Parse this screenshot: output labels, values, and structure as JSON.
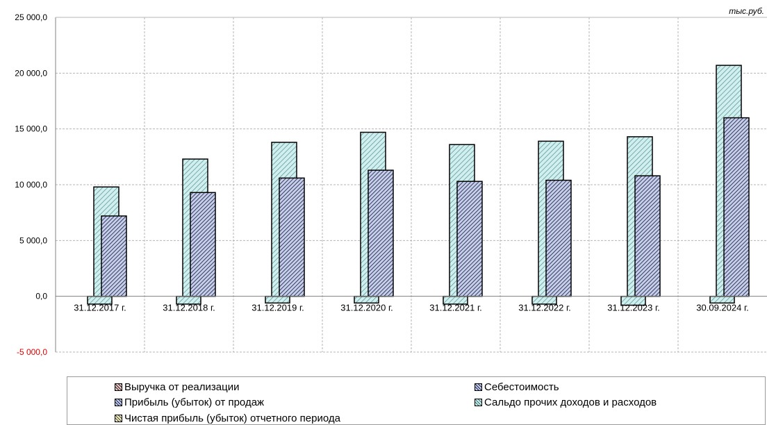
{
  "chart_data": {
    "type": "bar",
    "unit_label": "тыс.руб.",
    "categories": [
      "31.12.2017 г.",
      "31.12.2018 г.",
      "31.12.2019 г.",
      "31.12.2020 г.",
      "31.12.2021 г.",
      "31.12.2022 г.",
      "31.12.2023 г.",
      "30.09.2024 г."
    ],
    "ylim": [
      -5000,
      25000
    ],
    "yticks": [
      {
        "value": 25000,
        "label": "25 000,0"
      },
      {
        "value": 20000,
        "label": "20 000,0"
      },
      {
        "value": 15000,
        "label": "15 000,0"
      },
      {
        "value": 10000,
        "label": "10 000,0"
      },
      {
        "value": 5000,
        "label": "5 000,0"
      },
      {
        "value": 0,
        "label": "0,0"
      },
      {
        "value": -5000,
        "label": "-5 000,0"
      }
    ],
    "grid": true,
    "legend_position": "bottom",
    "series": [
      {
        "name": "Выручка от реализации",
        "color": "#c9d1ea",
        "values": [
          9800,
          12300,
          13800,
          14700,
          13600,
          13900,
          14300,
          20700
        ]
      },
      {
        "name": "Себестоимость",
        "color": "#c9d1ea",
        "values": [
          7200,
          9300,
          10600,
          11300,
          10300,
          10400,
          10800,
          16000
        ]
      },
      {
        "name": "Прибыль (убыток) от продаж",
        "color": "#c9d1ea",
        "values": [
          null,
          null,
          null,
          null,
          null,
          null,
          null,
          null
        ]
      },
      {
        "name": "Сальдо прочих доходов и расходов",
        "color": "#cdeeee",
        "values": [
          -700,
          -700,
          -600,
          -600,
          -700,
          -700,
          -800,
          -600
        ]
      },
      {
        "name": "Чистая прибыль (убыток) отчетного периода",
        "color": "#f1f0d6",
        "values": [
          null,
          null,
          null,
          null,
          null,
          null,
          null,
          null
        ]
      }
    ]
  },
  "legend": {
    "items": [
      {
        "label": "Выручка от реализации",
        "swatch": "red-hatch"
      },
      {
        "label": "Себестоимость",
        "swatch": "navy-hatch"
      },
      {
        "label": "Прибыль (убыток) от продаж",
        "swatch": "navy-hatch"
      },
      {
        "label": "Сальдо прочих доходов и расходов",
        "swatch": "teal-hatch"
      },
      {
        "label": "Чистая прибыль (убыток) отчетного периода",
        "swatch": "olive-hatch"
      }
    ]
  }
}
